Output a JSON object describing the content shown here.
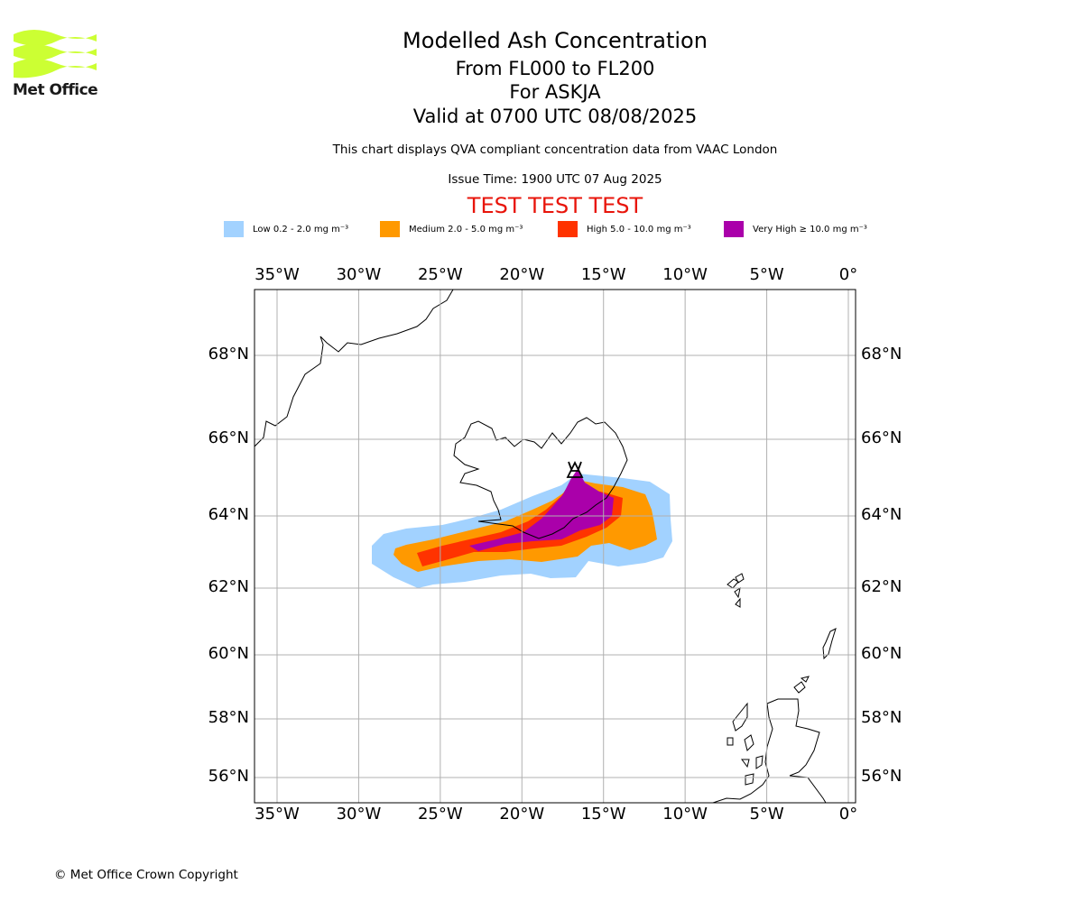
{
  "logo": {
    "text": "Met Office",
    "color": "#ccff33"
  },
  "title": {
    "line1": "Modelled Ash Concentration",
    "line2": "From FL000 to FL200",
    "line3": "For ASKJA",
    "line4": "Valid at 0700 UTC 08/08/2025"
  },
  "subtitle": "This chart displays QVA compliant concentration data from VAAC London",
  "issue_time": "Issue Time: 1900 UTC 07 Aug 2025",
  "test_banner": "TEST TEST TEST",
  "legend": [
    {
      "label": "Low 0.2 - 2.0 mg m⁻³",
      "color": "#a2d2ff"
    },
    {
      "label": "Medium 2.0 - 5.0 mg m⁻³",
      "color": "#ff9900"
    },
    {
      "label": "High 5.0 - 10.0 mg m⁻³",
      "color": "#ff3300"
    },
    {
      "label": "Very High ≥ 10.0 mg m⁻³",
      "color": "#aa00aa"
    }
  ],
  "axes": {
    "lon_labels": [
      "35°W",
      "30°W",
      "25°W",
      "20°W",
      "15°W",
      "10°W",
      "5°W",
      "0°"
    ],
    "lon_values": [
      -35,
      -30,
      -25,
      -20,
      -15,
      -10,
      -5,
      0
    ],
    "lat_labels": [
      "68°N",
      "66°N",
      "64°N",
      "62°N",
      "60°N",
      "58°N",
      "56°N"
    ],
    "lat_values": [
      68,
      66,
      64,
      62,
      60,
      58,
      56
    ],
    "lon_range": [
      -36.4,
      0.5
    ],
    "lat_range": [
      55.3,
      69.6
    ],
    "grid": true
  },
  "volcano": {
    "name": "ASKJA",
    "lon": -16.75,
    "lat": 65.05
  },
  "copyright": "© Met Office Crown Copyright"
}
